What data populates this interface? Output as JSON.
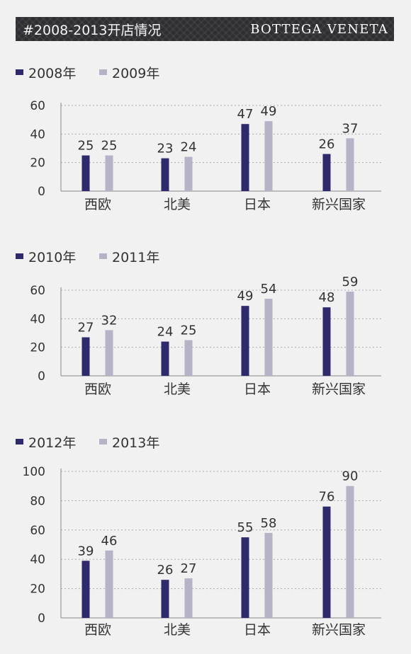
{
  "header": {
    "title": "#2008-2013开店情况",
    "brand": "BOTTEGA VENETA"
  },
  "colors": {
    "series_a": "#2e2a6b",
    "series_b": "#b5b4c6",
    "grid": "#aaaaaa",
    "axis": "#888888"
  },
  "chart_data": [
    {
      "type": "bar",
      "categories": [
        "西欧",
        "北美",
        "日本",
        "新兴国家"
      ],
      "series": [
        {
          "name": "2008年",
          "values": [
            25,
            23,
            47,
            26
          ]
        },
        {
          "name": "2009年",
          "values": [
            25,
            24,
            49,
            37
          ]
        }
      ],
      "ylim": [
        0,
        60
      ],
      "yticks": [
        0,
        20,
        40,
        60
      ],
      "grid": true,
      "legend": "top-left"
    },
    {
      "type": "bar",
      "categories": [
        "西欧",
        "北美",
        "日本",
        "新兴国家"
      ],
      "series": [
        {
          "name": "2010年",
          "values": [
            27,
            24,
            49,
            48
          ]
        },
        {
          "name": "2011年",
          "values": [
            32,
            25,
            54,
            59
          ]
        }
      ],
      "ylim": [
        0,
        60
      ],
      "yticks": [
        0,
        20,
        40,
        60
      ],
      "grid": true,
      "legend": "top-left"
    },
    {
      "type": "bar",
      "categories": [
        "西欧",
        "北美",
        "日本",
        "新兴国家"
      ],
      "series": [
        {
          "name": "2012年",
          "values": [
            39,
            26,
            55,
            76
          ]
        },
        {
          "name": "2013年",
          "values": [
            46,
            27,
            58,
            90
          ]
        }
      ],
      "ylim": [
        0,
        100
      ],
      "yticks": [
        0,
        20,
        40,
        60,
        80,
        100
      ],
      "grid": true,
      "legend": "top-left"
    }
  ]
}
